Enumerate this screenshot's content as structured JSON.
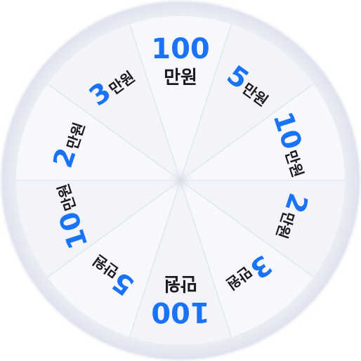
{
  "wheel": {
    "number_color": "#1a73f5",
    "unit_color": "#1b1b1f",
    "rim_color": "#e4e7f1",
    "face_color": "#f6f7fb",
    "segments": [
      {
        "number": "100",
        "unit": "만원"
      },
      {
        "number": "5",
        "unit": "만원"
      },
      {
        "number": "10",
        "unit": "만원"
      },
      {
        "number": "2",
        "unit": "만원"
      },
      {
        "number": "3",
        "unit": "만원"
      },
      {
        "number": "100",
        "unit": "만원"
      },
      {
        "number": "5",
        "unit": "만원"
      },
      {
        "number": "10",
        "unit": "만원"
      },
      {
        "number": "2",
        "unit": "만원"
      },
      {
        "number": "3",
        "unit": "만원"
      }
    ]
  }
}
